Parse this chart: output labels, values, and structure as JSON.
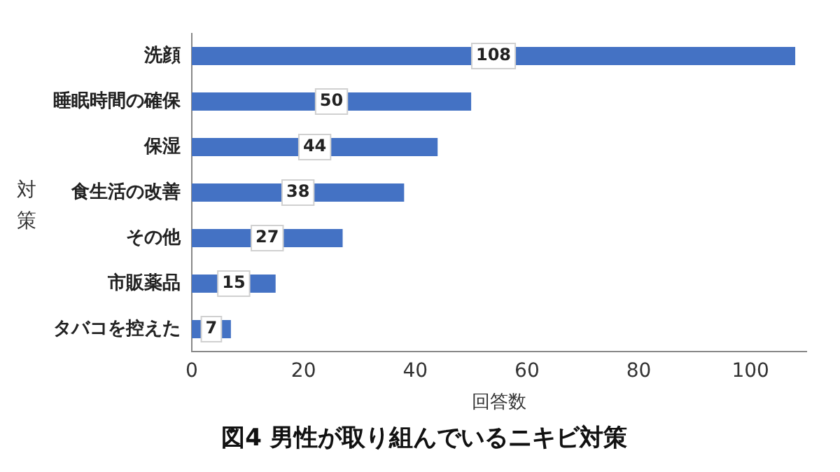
{
  "chart_data": {
    "type": "bar",
    "orientation": "horizontal",
    "title": "図4 男性が取り組んでいるニキビ対策",
    "xlabel": "回答数",
    "ylabel": "対策",
    "categories": [
      "洗顔",
      "睡眠時間の確保",
      "保湿",
      "食生活の改善",
      "その他",
      "市販薬品",
      "タバコを控えた"
    ],
    "values": [
      108,
      50,
      44,
      38,
      27,
      15,
      7
    ],
    "color": "#4472c4",
    "xlim": [
      0,
      110
    ],
    "xticks": [
      0,
      20,
      40,
      60,
      80,
      100
    ],
    "grid": false,
    "data_labels": true
  }
}
